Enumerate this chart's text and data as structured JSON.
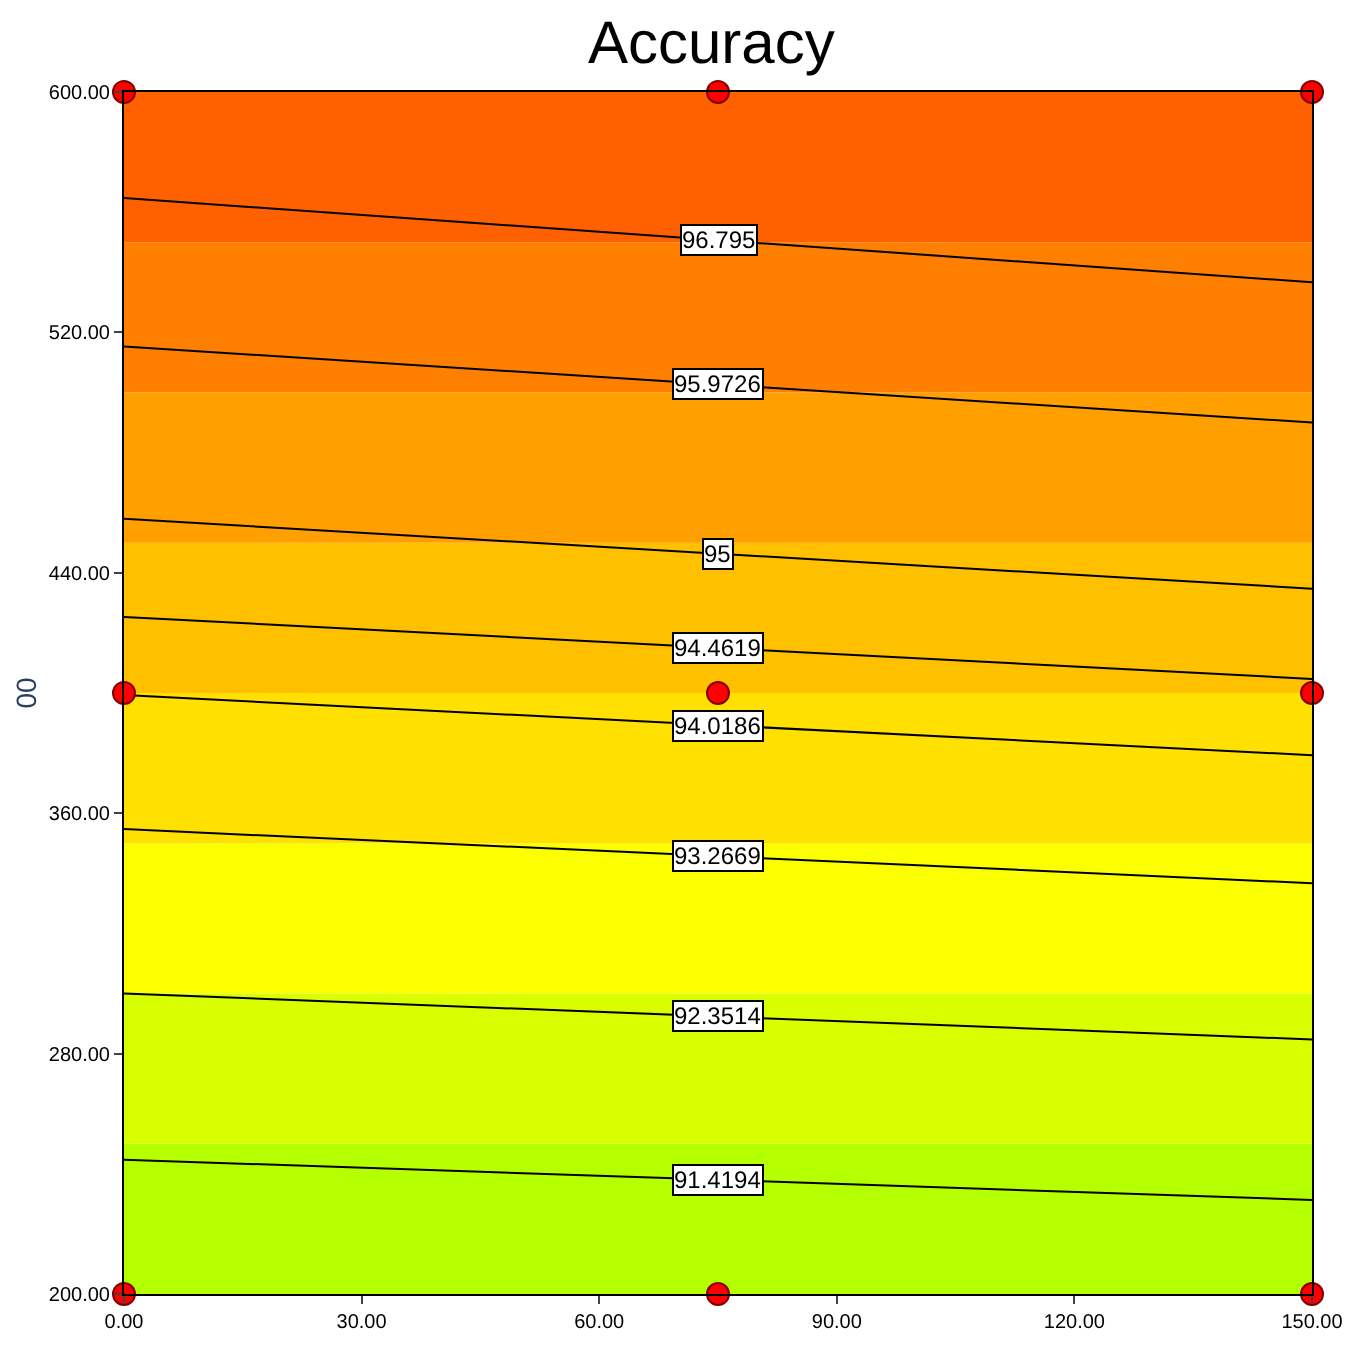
{
  "chart_data": {
    "type": "line",
    "title": "Accuracy",
    "ylabel": "00",
    "xlim": [
      0,
      150
    ],
    "ylim": [
      200,
      600
    ],
    "xticks": [
      {
        "value": 0,
        "label": "0.00"
      },
      {
        "value": 30,
        "label": "30.00"
      },
      {
        "value": 60,
        "label": "60.00"
      },
      {
        "value": 90,
        "label": "90.00"
      },
      {
        "value": 120,
        "label": "120.00"
      },
      {
        "value": 150,
        "label": "150.00"
      }
    ],
    "yticks": [
      {
        "value": 200,
        "label": "200.00"
      },
      {
        "value": 280,
        "label": "280.00"
      },
      {
        "value": 360,
        "label": "360.00"
      },
      {
        "value": 440,
        "label": "440.00"
      },
      {
        "value": 520,
        "label": "520.00"
      },
      {
        "value": 600,
        "label": "600.00"
      }
    ],
    "grid": false,
    "legend": false,
    "bands": [
      {
        "axis": "y",
        "from": 200,
        "to": 250,
        "color": "#b4ff00"
      },
      {
        "axis": "y",
        "from": 250,
        "to": 300,
        "color": "#d8ff00"
      },
      {
        "axis": "y",
        "from": 300,
        "to": 350,
        "color": "#fcff00"
      },
      {
        "axis": "y",
        "from": 350,
        "to": 400,
        "color": "#ffe000"
      },
      {
        "axis": "y",
        "from": 400,
        "to": 450,
        "color": "#ffc000"
      },
      {
        "axis": "y",
        "from": 450,
        "to": 500,
        "color": "#ffa000"
      },
      {
        "axis": "y",
        "from": 500,
        "to": 550,
        "color": "#ff8000"
      },
      {
        "axis": "y",
        "from": 550,
        "to": 600,
        "color": "#ff6000"
      }
    ],
    "series": [
      {
        "name": "96.795",
        "color": "#000000",
        "x": [
          0,
          150
        ],
        "values": [
          564.7,
          536.7
        ]
      },
      {
        "name": "95.9726",
        "color": "#000000",
        "x": [
          0,
          150
        ],
        "values": [
          515.3,
          490
        ]
      },
      {
        "name": "95",
        "color": "#000000",
        "x": [
          0,
          150
        ],
        "values": [
          458,
          434.7
        ]
      },
      {
        "name": "94.4619",
        "color": "#000000",
        "x": [
          0,
          150
        ],
        "values": [
          425.3,
          404.7
        ]
      },
      {
        "name": "94.0186",
        "color": "#000000",
        "x": [
          0,
          150
        ],
        "values": [
          399.3,
          379.3
        ]
      },
      {
        "name": "93.2669",
        "color": "#000000",
        "x": [
          0,
          150
        ],
        "values": [
          354.7,
          336.7
        ]
      },
      {
        "name": "92.3514",
        "color": "#000000",
        "x": [
          0,
          150
        ],
        "values": [
          300,
          284.7
        ]
      },
      {
        "name": "91.4194",
        "color": "#000000",
        "x": [
          0,
          150
        ],
        "values": [
          244.7,
          231.3
        ]
      },
      {
        "type": "scatter",
        "marker": "circle",
        "color": "#ff0000",
        "x": [
          0,
          75,
          150,
          0,
          75,
          150,
          0,
          75,
          150
        ],
        "values": [
          200,
          200,
          200,
          400,
          400,
          400,
          600,
          600,
          600
        ]
      }
    ]
  }
}
